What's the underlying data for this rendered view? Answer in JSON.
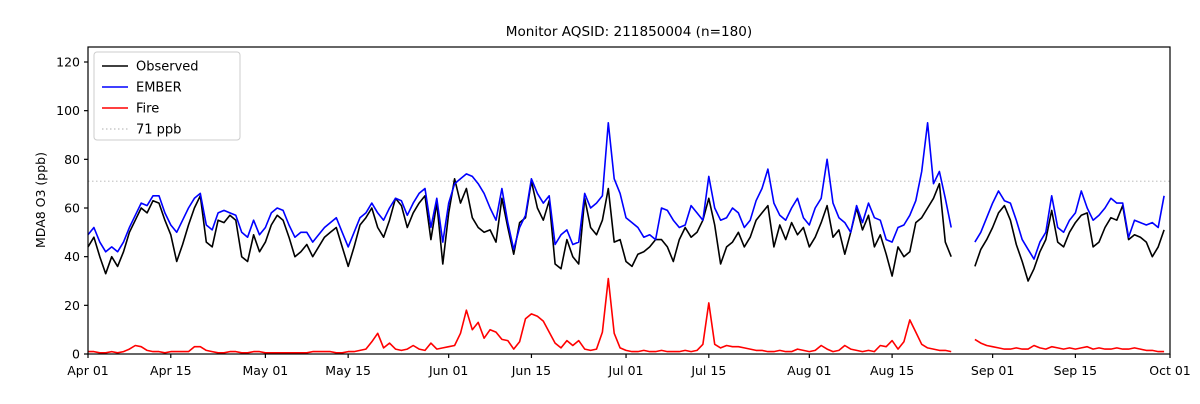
{
  "chart_data": {
    "type": "line",
    "title": "Monitor AQSID: 211850004 (n=180)",
    "ylabel": "MDA8 O3 (ppb)",
    "xlabel": "",
    "ylim": [
      0,
      126
    ],
    "y_ticks": [
      0,
      20,
      40,
      60,
      80,
      100,
      120
    ],
    "x_total_days": 183,
    "x_tick_days": [
      0,
      14,
      30,
      44,
      61,
      75,
      91,
      105,
      122,
      136,
      153,
      167,
      183
    ],
    "x_tick_labels": [
      "Apr 01",
      "Apr 15",
      "May 01",
      "May 15",
      "Jun 01",
      "Jun 15",
      "Jul 01",
      "Jul 15",
      "Aug 01",
      "Aug 15",
      "Sep 01",
      "Sep 15",
      "Oct 01"
    ],
    "grid": false,
    "legend_position": "upper left",
    "ref_line": {
      "value": 71,
      "label": "71 ppb",
      "color": "#c9c9c9",
      "style": "dotted"
    },
    "series": [
      {
        "name": "Observed",
        "color": "#000000",
        "values": [
          44,
          48,
          40,
          33,
          40,
          36,
          42,
          50,
          55,
          60,
          58,
          63,
          62,
          55,
          49,
          38,
          45,
          53,
          60,
          65,
          46,
          44,
          55,
          54,
          57,
          55,
          40,
          38,
          49,
          42,
          46,
          53,
          57,
          55,
          48,
          40,
          42,
          45,
          40,
          44,
          48,
          50,
          52,
          44,
          36,
          44,
          53,
          56,
          60,
          52,
          48,
          55,
          64,
          61,
          52,
          58,
          62,
          65,
          47,
          62,
          37,
          58,
          72,
          62,
          68,
          56,
          52,
          50,
          51,
          46,
          64,
          52,
          41,
          54,
          56,
          71,
          60,
          55,
          63,
          37,
          35,
          47,
          40,
          37,
          64,
          52,
          49,
          55,
          68,
          46,
          47,
          38,
          36,
          41,
          42,
          44,
          47,
          47,
          44,
          38,
          47,
          52,
          48,
          50,
          55,
          64,
          53,
          37,
          44,
          46,
          50,
          44,
          48,
          55,
          58,
          61,
          44,
          53,
          47,
          54,
          49,
          52,
          44,
          48,
          54,
          61,
          48,
          51,
          41,
          50,
          60,
          51,
          57,
          44,
          49,
          41,
          32,
          44,
          40,
          42,
          54,
          56,
          60,
          64,
          70,
          46,
          40,
          null,
          null,
          null,
          36,
          43,
          47,
          52,
          58,
          61,
          55,
          45,
          38,
          30,
          35,
          42,
          47,
          59,
          46,
          44,
          50,
          54,
          57,
          58,
          44,
          46,
          52,
          56,
          55,
          61,
          47,
          49,
          48,
          46,
          40,
          44,
          51
        ]
      },
      {
        "name": "EMBER",
        "color": "#0000ff",
        "values": [
          49,
          52,
          46,
          42,
          44,
          42,
          46,
          52,
          57,
          62,
          61,
          65,
          65,
          58,
          53,
          50,
          55,
          60,
          64,
          66,
          53,
          51,
          58,
          59,
          58,
          57,
          50,
          48,
          55,
          49,
          52,
          58,
          60,
          59,
          53,
          48,
          50,
          50,
          46,
          49,
          52,
          54,
          56,
          50,
          44,
          50,
          56,
          58,
          62,
          58,
          55,
          60,
          64,
          63,
          57,
          62,
          66,
          68,
          52,
          64,
          46,
          62,
          70,
          72,
          74,
          73,
          70,
          66,
          60,
          55,
          68,
          54,
          43,
          52,
          57,
          72,
          66,
          62,
          65,
          45,
          49,
          51,
          45,
          46,
          66,
          60,
          62,
          65,
          95,
          72,
          66,
          56,
          54,
          52,
          48,
          49,
          47,
          60,
          59,
          55,
          52,
          53,
          61,
          58,
          55,
          73,
          60,
          55,
          56,
          60,
          58,
          52,
          55,
          63,
          68,
          76,
          62,
          57,
          55,
          60,
          64,
          56,
          53,
          60,
          64,
          80,
          62,
          56,
          54,
          50,
          61,
          54,
          62,
          56,
          55,
          47,
          46,
          52,
          53,
          57,
          63,
          75,
          95,
          70,
          75,
          64,
          52,
          null,
          null,
          null,
          46,
          50,
          56,
          62,
          67,
          63,
          62,
          55,
          47,
          43,
          39,
          46,
          50,
          65,
          52,
          50,
          55,
          58,
          67,
          60,
          55,
          57,
          60,
          64,
          62,
          62,
          48,
          55,
          54,
          53,
          54,
          52,
          65
        ]
      },
      {
        "name": "Fire",
        "color": "#ff0000",
        "values": [
          1,
          1,
          0.5,
          0.5,
          1,
          0.5,
          1,
          2,
          3.5,
          3,
          1.5,
          1,
          1,
          0.5,
          1,
          1,
          1,
          1,
          3,
          3,
          1.5,
          1,
          0.5,
          0.5,
          1,
          1,
          0.5,
          0.5,
          1,
          1,
          0.5,
          0.5,
          0.5,
          0.5,
          0.5,
          0.5,
          0.5,
          0.5,
          1,
          1,
          1,
          1,
          0.5,
          0.5,
          1,
          1,
          1.5,
          2,
          5,
          8.5,
          2.5,
          4.5,
          2,
          1.5,
          2,
          3.5,
          2,
          1.5,
          4.5,
          2,
          2.5,
          3,
          3.5,
          8.5,
          18,
          10,
          13,
          6.5,
          10,
          9,
          6,
          5.5,
          2,
          5,
          14.5,
          16.5,
          15.5,
          13.5,
          9,
          4.5,
          2.5,
          5.5,
          3.5,
          5.5,
          2,
          1.5,
          2,
          9,
          31,
          8.5,
          2.5,
          1.5,
          1,
          1,
          1.5,
          1,
          1,
          1.5,
          1,
          1,
          1,
          1.5,
          1,
          1.5,
          4,
          21,
          4,
          2.5,
          3.5,
          3,
          3,
          2.5,
          2,
          1.5,
          1.5,
          1,
          1,
          1.5,
          1,
          1,
          2,
          1.5,
          1,
          1.5,
          3.5,
          2,
          1,
          1.5,
          3.5,
          2,
          1.5,
          1,
          1.5,
          1,
          3.5,
          3,
          5.5,
          2,
          5,
          14,
          9,
          4,
          2.5,
          2,
          1.5,
          1.5,
          1,
          null,
          null,
          null,
          6,
          4.5,
          3.5,
          3,
          2.5,
          2,
          2,
          2.5,
          2,
          2,
          3.5,
          2.5,
          2,
          3,
          2.5,
          2,
          2.5,
          2,
          2.5,
          3,
          2,
          2.5,
          2,
          2,
          2.5,
          2,
          2,
          2.5,
          2,
          1.5,
          1.5,
          1,
          1
        ]
      }
    ]
  }
}
